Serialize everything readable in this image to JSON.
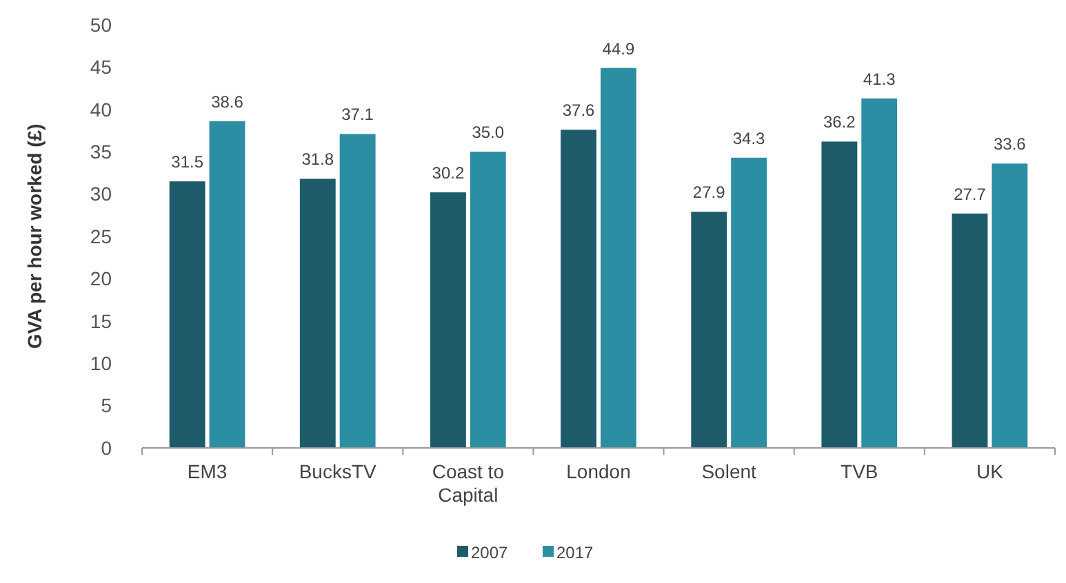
{
  "chart_data": {
    "type": "bar",
    "ylabel": "GVA per hour worked (£)",
    "categories": [
      "EM3",
      "BucksTV",
      "Coast to Capital",
      "London",
      "Solent",
      "TVB",
      "UK"
    ],
    "series": [
      {
        "name": "2007",
        "color": "#1d5b6b",
        "values": [
          31.5,
          31.8,
          30.2,
          37.6,
          27.9,
          36.2,
          27.7
        ],
        "value_labels": [
          "31.5",
          "31.8",
          "30.2",
          "37.6",
          "27.9",
          "36.2",
          "27.7"
        ]
      },
      {
        "name": "2017",
        "color": "#2b8ea2",
        "values": [
          38.6,
          37.1,
          35.0,
          44.9,
          34.3,
          41.3,
          33.6
        ],
        "value_labels": [
          "38.6",
          "37.1",
          "35.0",
          "44.9",
          "34.3",
          "41.3",
          "33.6"
        ]
      }
    ],
    "ylim": [
      0,
      50
    ],
    "yticks": [
      0,
      5,
      10,
      15,
      20,
      25,
      30,
      35,
      40,
      45,
      50
    ],
    "legend": "bottom"
  }
}
